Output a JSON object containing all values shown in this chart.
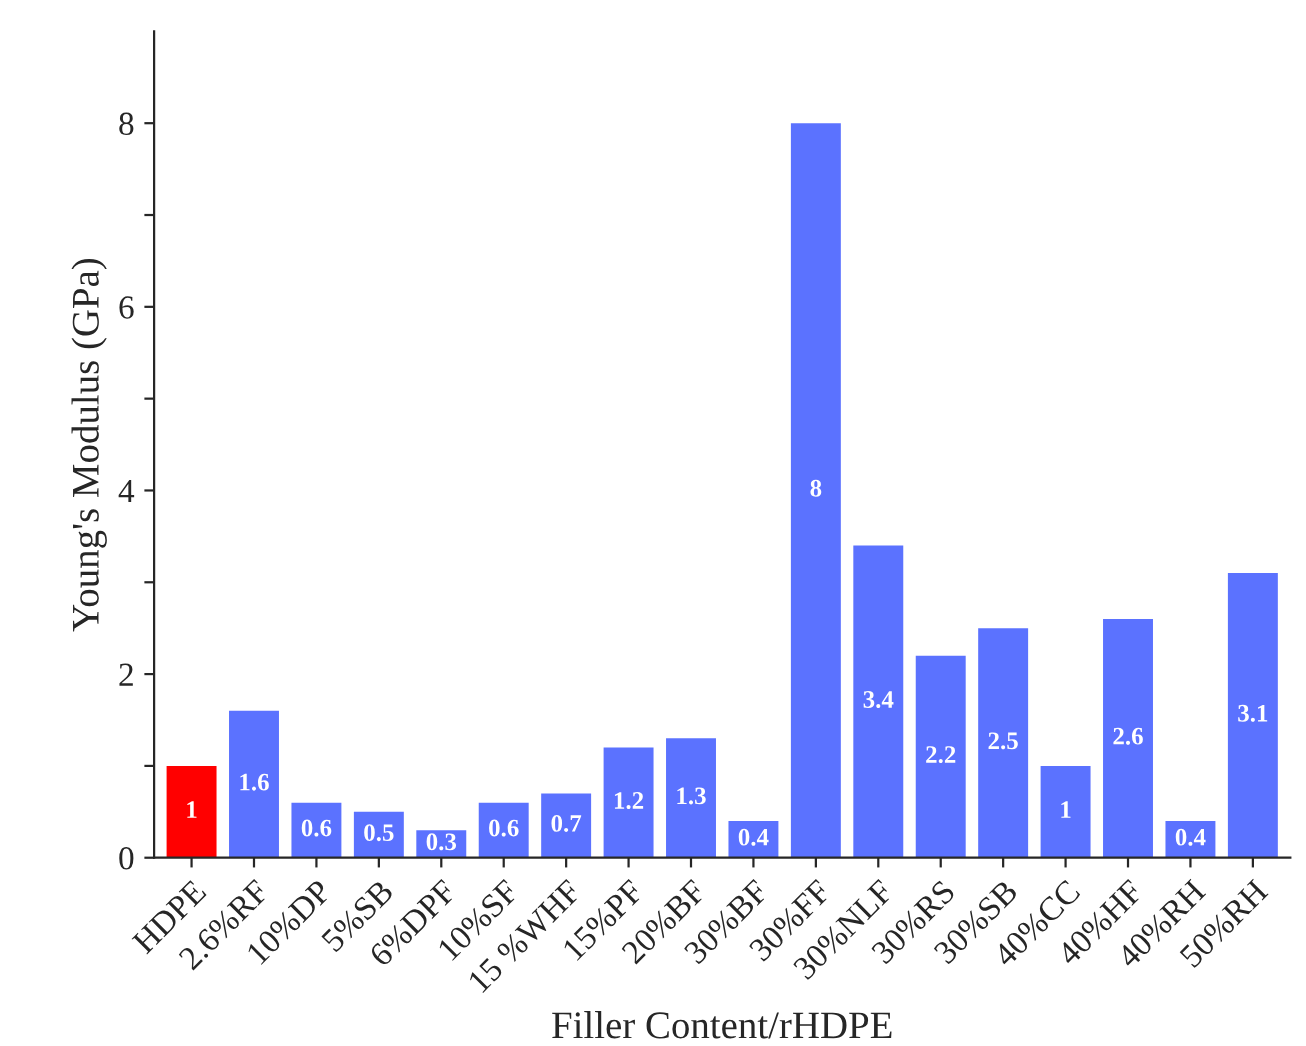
{
  "chart_data": {
    "type": "bar",
    "categories": [
      "HDPE",
      "2.6%RF",
      "10%DP",
      "5%SB",
      "6%DPF",
      "10%SF",
      "15 %WHF",
      "15%PF",
      "20%BF",
      "30%BF",
      "30%FF",
      "30%NLF",
      "30%RS",
      "30%SB",
      "40%CC",
      "40%HF",
      "40%RH",
      "50%RH"
    ],
    "values": [
      1,
      1.6,
      0.6,
      0.5,
      0.3,
      0.6,
      0.7,
      1.2,
      1.3,
      0.4,
      8,
      3.4,
      2.2,
      2.5,
      1,
      2.6,
      0.4,
      3.1
    ],
    "colors": [
      "#ff0000",
      "#5b72ff",
      "#5b72ff",
      "#5b72ff",
      "#5b72ff",
      "#5b72ff",
      "#5b72ff",
      "#5b72ff",
      "#5b72ff",
      "#5b72ff",
      "#5b72ff",
      "#5b72ff",
      "#5b72ff",
      "#5b72ff",
      "#5b72ff",
      "#5b72ff",
      "#5b72ff",
      "#5b72ff"
    ],
    "xlabel": "Filler Content/rHDPE",
    "ylabel": "Young's Modulus (GPa)",
    "ylim": [
      0,
      9
    ],
    "yticks": [
      0,
      {
        "value": 1,
        "label": null
      },
      2,
      {
        "value": 3,
        "label": null
      },
      4,
      {
        "value": 5,
        "label": null
      },
      6,
      {
        "value": 7,
        "label": null
      },
      8
    ],
    "data_labels": true,
    "grid": false,
    "legend": false
  }
}
